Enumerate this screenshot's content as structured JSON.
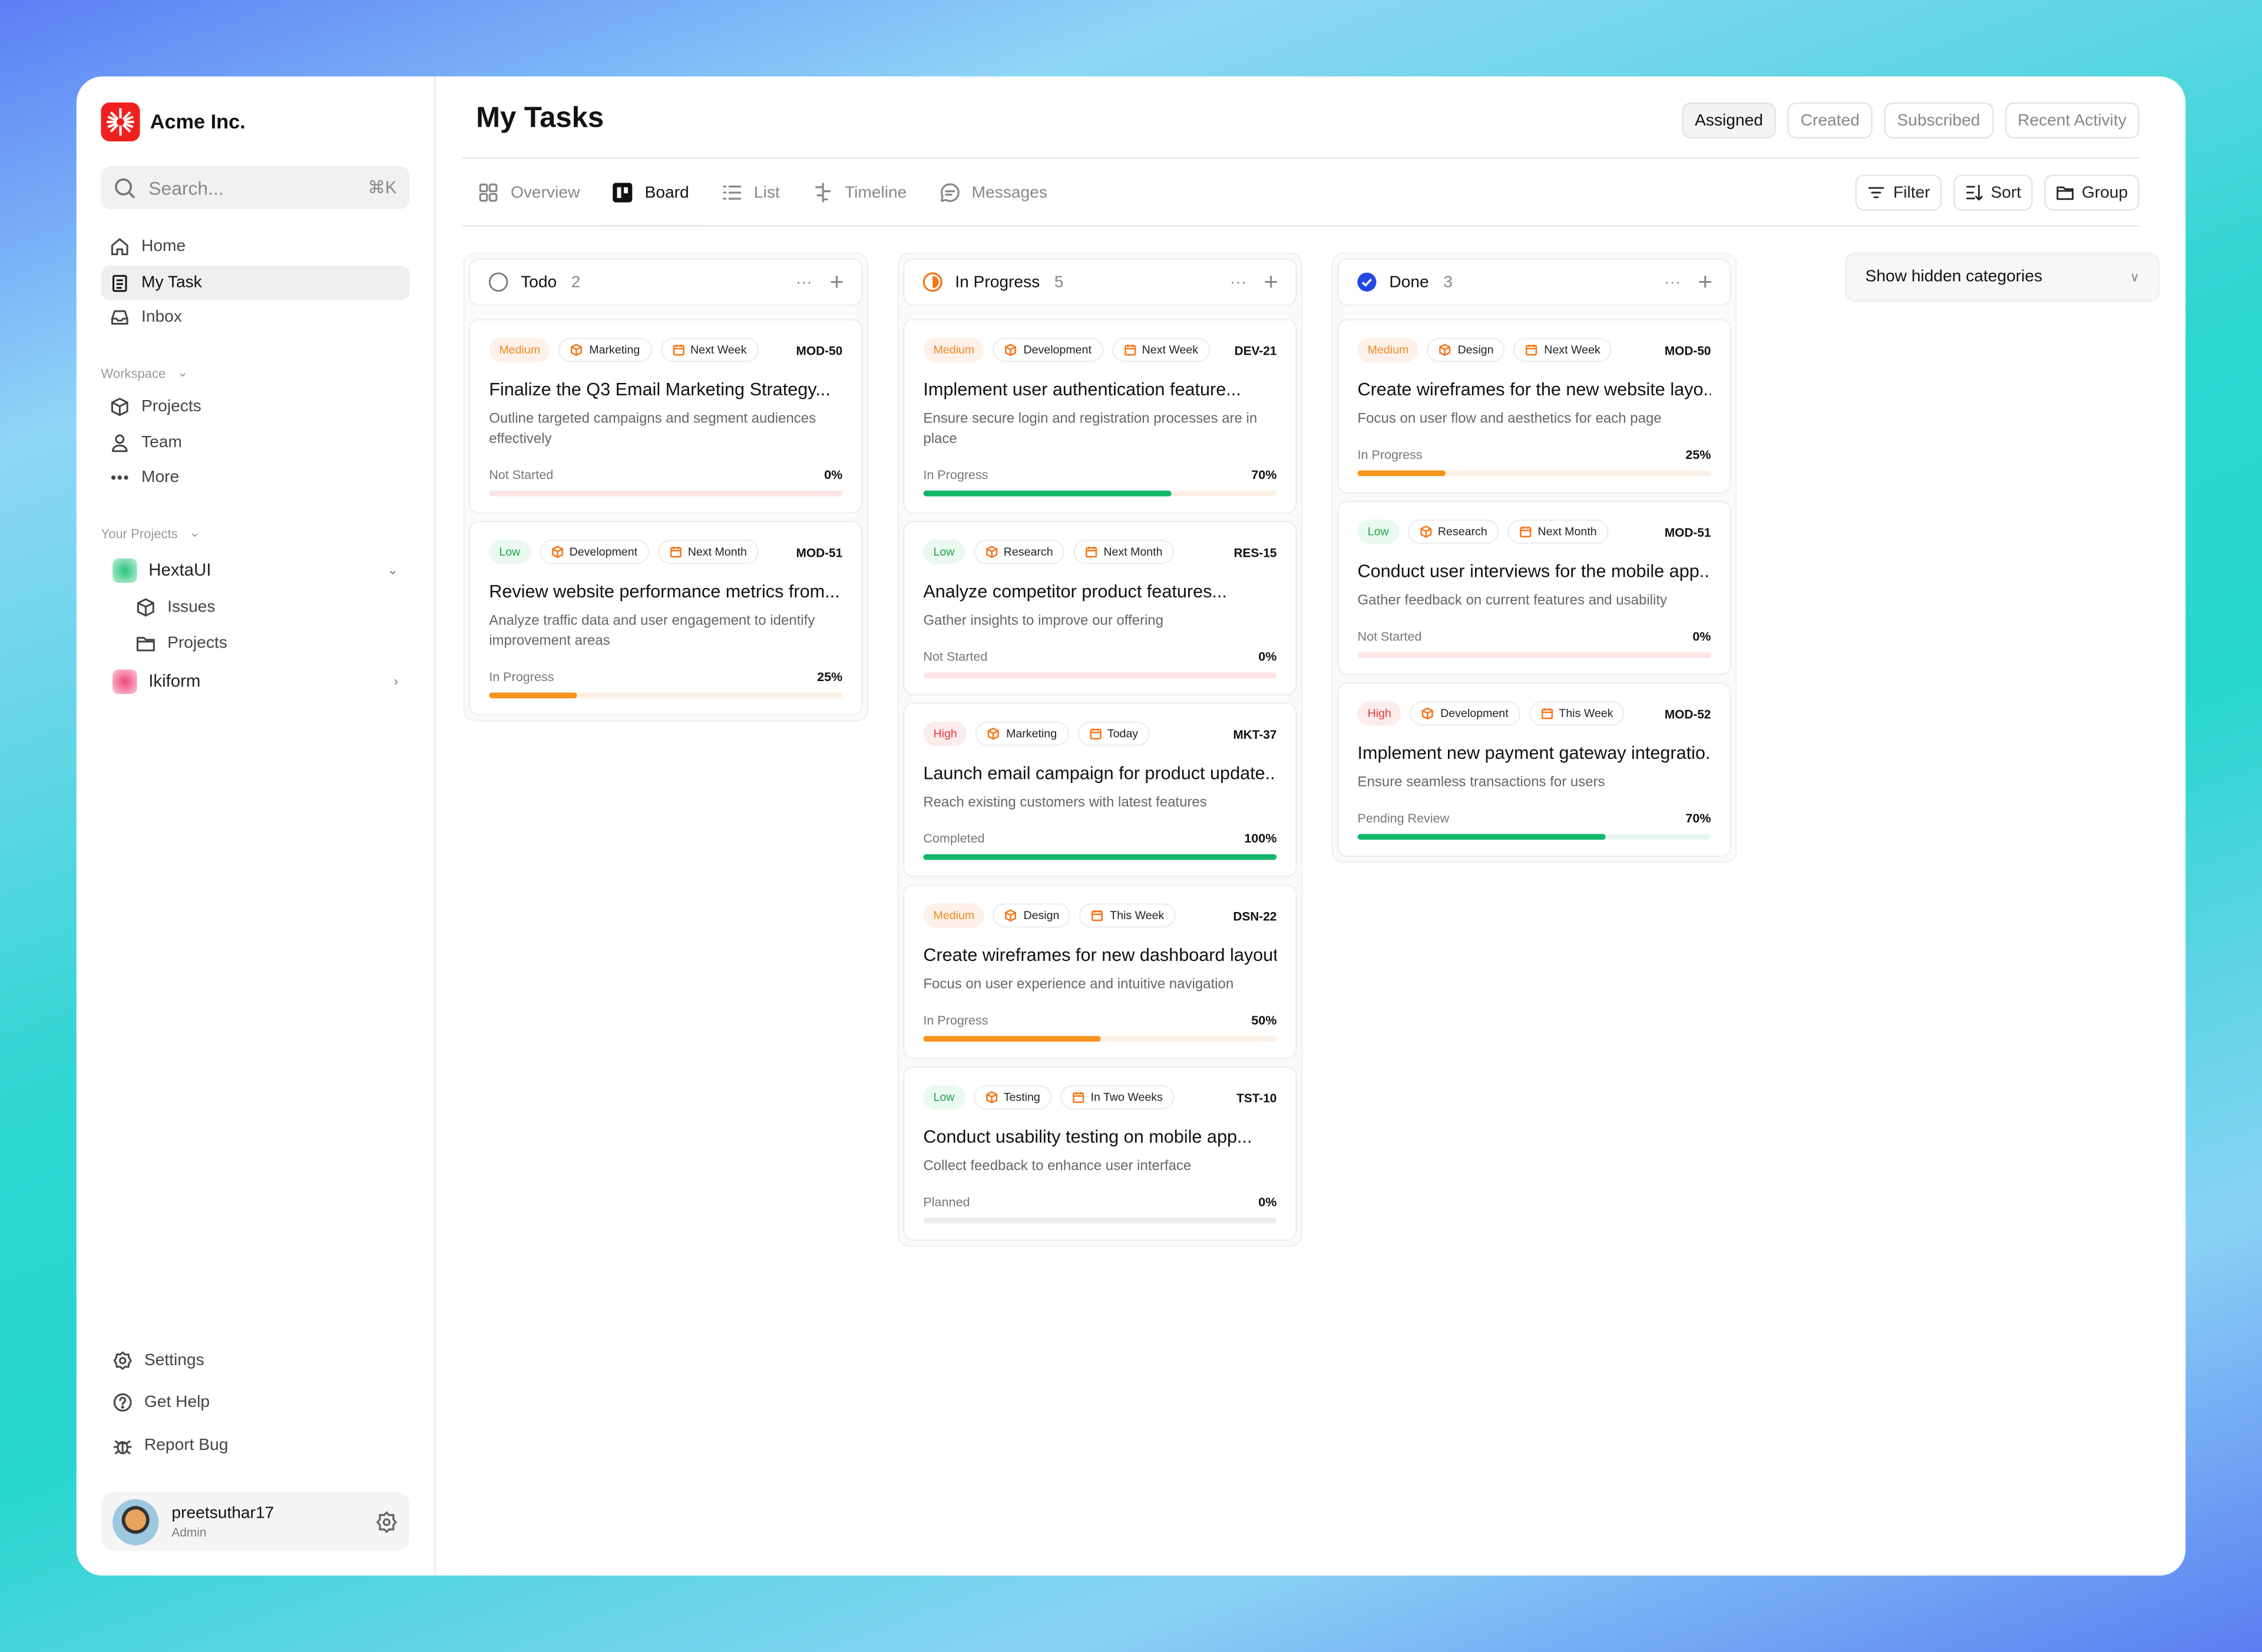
{
  "sidebar": {
    "brand": "Acme Inc.",
    "search_placeholder": "Search...",
    "search_shortcut": "⌘K",
    "nav": [
      {
        "label": "Home",
        "icon": "home-icon"
      },
      {
        "label": "My Task",
        "icon": "clipboard-icon",
        "active": true
      },
      {
        "label": "Inbox",
        "icon": "inbox-icon"
      }
    ],
    "workspace_label": "Workspace",
    "workspace": [
      {
        "label": "Projects",
        "icon": "cube-icon"
      },
      {
        "label": "Team",
        "icon": "user-icon"
      },
      {
        "label": "More",
        "icon": "more-icon"
      }
    ],
    "projects_label": "Your Projects",
    "projects": [
      {
        "name": "HextaUI",
        "color": "#27c27a",
        "expanded": true,
        "children": [
          "Issues",
          "Projects"
        ]
      },
      {
        "name": "Ikiform",
        "color": "#f0457a",
        "expanded": false
      }
    ],
    "bottom": [
      {
        "label": "Settings",
        "icon": "gear-icon"
      },
      {
        "label": "Get Help",
        "icon": "help-icon"
      },
      {
        "label": "Report Bug",
        "icon": "bug-icon"
      }
    ],
    "user": {
      "name": "preetsuthar17",
      "role": "Admin"
    }
  },
  "header": {
    "title": "My Tasks",
    "views": [
      "Assigned",
      "Created",
      "Subscribed",
      "Recent Activity"
    ],
    "active_view": "Assigned"
  },
  "tabs": [
    {
      "label": "Overview",
      "icon": "grid-icon"
    },
    {
      "label": "Board",
      "icon": "board-icon",
      "active": true
    },
    {
      "label": "List",
      "icon": "list-icon"
    },
    {
      "label": "Timeline",
      "icon": "timeline-icon"
    },
    {
      "label": "Messages",
      "icon": "message-icon"
    }
  ],
  "tools": [
    {
      "label": "Filter",
      "icon": "filter-icon"
    },
    {
      "label": "Sort",
      "icon": "sort-icon"
    },
    {
      "label": "Group",
      "icon": "folder-icon"
    }
  ],
  "hidden_categories": "Show hidden categories",
  "colors": {
    "Medium": [
      "#fdf1ea",
      "#f08a24"
    ],
    "Low": [
      "#eafaf0",
      "#22a34a"
    ],
    "High": [
      "#fdecec",
      "#e53935"
    ],
    "accent": "#f97316"
  },
  "status_colors": {
    "Not Started": [
      "#fde4e4",
      "#fde4e4"
    ],
    "In Progress": [
      "#fdf1e6",
      "#f7941d"
    ],
    "Completed": [
      "#e4f6ee",
      "#12b76a"
    ],
    "Pending Review": [
      "#e4f6ee",
      "#12b76a"
    ],
    "Planned": [
      "#ececec",
      "#ececec"
    ]
  },
  "columns": [
    {
      "name": "Todo",
      "count": "2",
      "icon": "circle-icon",
      "cards": [
        {
          "priority": "Medium",
          "category": "Marketing",
          "due": "Next Week",
          "id": "MOD-50",
          "title": "Finalize the Q3 Email Marketing Strategy...",
          "desc": "Outline targeted campaigns and segment audiences effectively",
          "status": "Not Started",
          "progress": "0%",
          "fill_color": "In Progress"
        },
        {
          "priority": "Low",
          "category": "Development",
          "due": "Next Month",
          "id": "MOD-51",
          "title": "Review website performance metrics from...",
          "desc": "Analyze traffic data and user engagement to identify improvement areas",
          "status": "In Progress",
          "progress": "25%"
        }
      ]
    },
    {
      "name": "In Progress",
      "count": "5",
      "icon": "half-circle-icon",
      "cards": [
        {
          "priority": "Medium",
          "category": "Development",
          "due": "Next Week",
          "id": "DEV-21",
          "title": "Implement user authentication feature...",
          "desc": "Ensure secure login and registration processes are in place",
          "status": "In Progress",
          "progress": "70%",
          "fill_color": "Completed"
        },
        {
          "priority": "Low",
          "category": "Research",
          "due": "Next Month",
          "id": "RES-15",
          "title": "Analyze competitor product features...",
          "desc": "Gather insights to improve our offering",
          "status": "Not Started",
          "progress": "0%"
        },
        {
          "priority": "High",
          "category": "Marketing",
          "due": "Today",
          "id": "MKT-37",
          "title": "Launch email campaign for product update...",
          "desc": "Reach existing customers with latest features",
          "status": "Completed",
          "progress": "100%"
        },
        {
          "priority": "Medium",
          "category": "Design",
          "due": "This Week",
          "id": "DSN-22",
          "title": "Create wireframes for new dashboard layout...",
          "desc": "Focus on user experience and intuitive navigation",
          "status": "In Progress",
          "progress": "50%"
        },
        {
          "priority": "Low",
          "category": "Testing",
          "due": "In Two Weeks",
          "id": "TST-10",
          "title": "Conduct usability testing on mobile app...",
          "desc": "Collect feedback to enhance user interface",
          "status": "Planned",
          "progress": "0%"
        }
      ]
    },
    {
      "name": "Done",
      "count": "3",
      "icon": "check-circle-icon",
      "cards": [
        {
          "priority": "Medium",
          "category": "Design",
          "due": "Next Week",
          "id": "MOD-50",
          "title": "Create wireframes for the new website layo...",
          "desc": "Focus on user flow and aesthetics for each page",
          "status": "In Progress",
          "progress": "25%"
        },
        {
          "priority": "Low",
          "category": "Research",
          "due": "Next Month",
          "id": "MOD-51",
          "title": "Conduct user interviews for the mobile app...",
          "desc": "Gather feedback on current features and usability",
          "status": "Not Started",
          "progress": "0%"
        },
        {
          "priority": "High",
          "category": "Development",
          "due": "This Week",
          "id": "MOD-52",
          "title": "Implement new payment gateway integratio...",
          "desc": "Ensure seamless transactions for users",
          "status": "Pending Review",
          "progress": "70%"
        }
      ]
    }
  ]
}
